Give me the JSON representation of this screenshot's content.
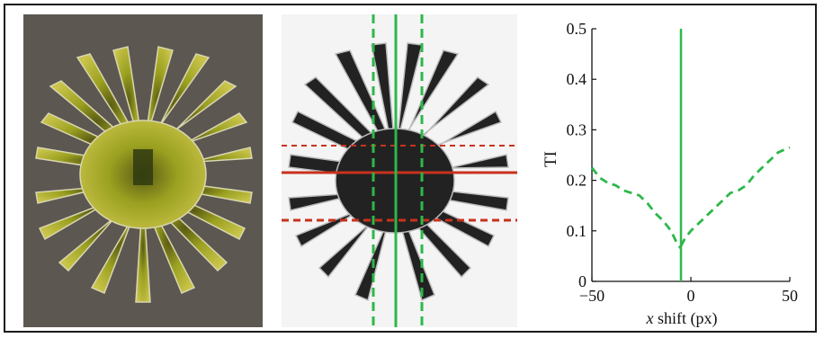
{
  "figure": {
    "panels": [
      "photo-micrograph",
      "processed-silhouette",
      "ti-plot"
    ]
  },
  "chart_data": {
    "type": "line",
    "xlabel_italic": "x",
    "xlabel_rest": " shift (px)",
    "ylabel": "TI",
    "xlim": [
      -50,
      50
    ],
    "ylim": [
      0,
      0.5
    ],
    "xticks": [
      "−50",
      "0",
      "50"
    ],
    "yticks": [
      "0",
      "0.1",
      "0.2",
      "0.3",
      "0.4",
      "0.5"
    ],
    "ytick_values": [
      0,
      0.1,
      0.2,
      0.3,
      0.4,
      0.5
    ],
    "xtick_values": [
      -50,
      0,
      50
    ],
    "vertical_line_x": -5,
    "series": [
      {
        "style": "dashed",
        "color": "#2db84a",
        "x": [
          -50,
          -46,
          -42,
          -38,
          -34,
          -30,
          -26,
          -22,
          -18,
          -14,
          -10,
          -7,
          -5
        ],
        "y": [
          0.225,
          0.205,
          0.195,
          0.19,
          0.18,
          0.175,
          0.17,
          0.155,
          0.135,
          0.12,
          0.1,
          0.075,
          0.065
        ]
      },
      {
        "style": "dashed",
        "color": "#2db84a",
        "x": [
          -5,
          -3,
          0,
          4,
          8,
          12,
          16,
          20,
          24,
          28,
          32,
          36,
          40,
          44,
          48,
          50
        ],
        "y": [
          0.07,
          0.085,
          0.1,
          0.115,
          0.13,
          0.145,
          0.16,
          0.175,
          0.18,
          0.19,
          0.21,
          0.225,
          0.24,
          0.255,
          0.262,
          0.265
        ]
      }
    ]
  },
  "colors": {
    "green": "#2db84a",
    "red": "#c8321e"
  }
}
